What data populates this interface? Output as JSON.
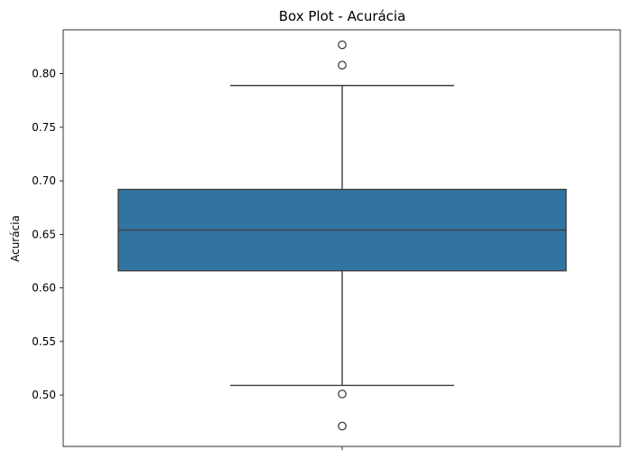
{
  "chart_data": {
    "type": "box",
    "title": "Box Plot - Acurácia",
    "xlabel": "",
    "ylabel": "Acurácia",
    "ylim": [
      0.452,
      0.841
    ],
    "yticks": [
      0.5,
      0.55,
      0.6,
      0.65,
      0.7,
      0.75,
      0.8
    ],
    "ytick_labels": [
      "0.50",
      "0.55",
      "0.60",
      "0.65",
      "0.70",
      "0.75",
      "0.80"
    ],
    "grid": false,
    "box": {
      "whisker_low": 0.509,
      "q1": 0.616,
      "median": 0.654,
      "q3": 0.692,
      "whisker_high": 0.789,
      "outliers": [
        0.827,
        0.808,
        0.501,
        0.471
      ]
    },
    "colors": {
      "box_fill": "#3274a1",
      "line": "#3f3f3f"
    }
  }
}
